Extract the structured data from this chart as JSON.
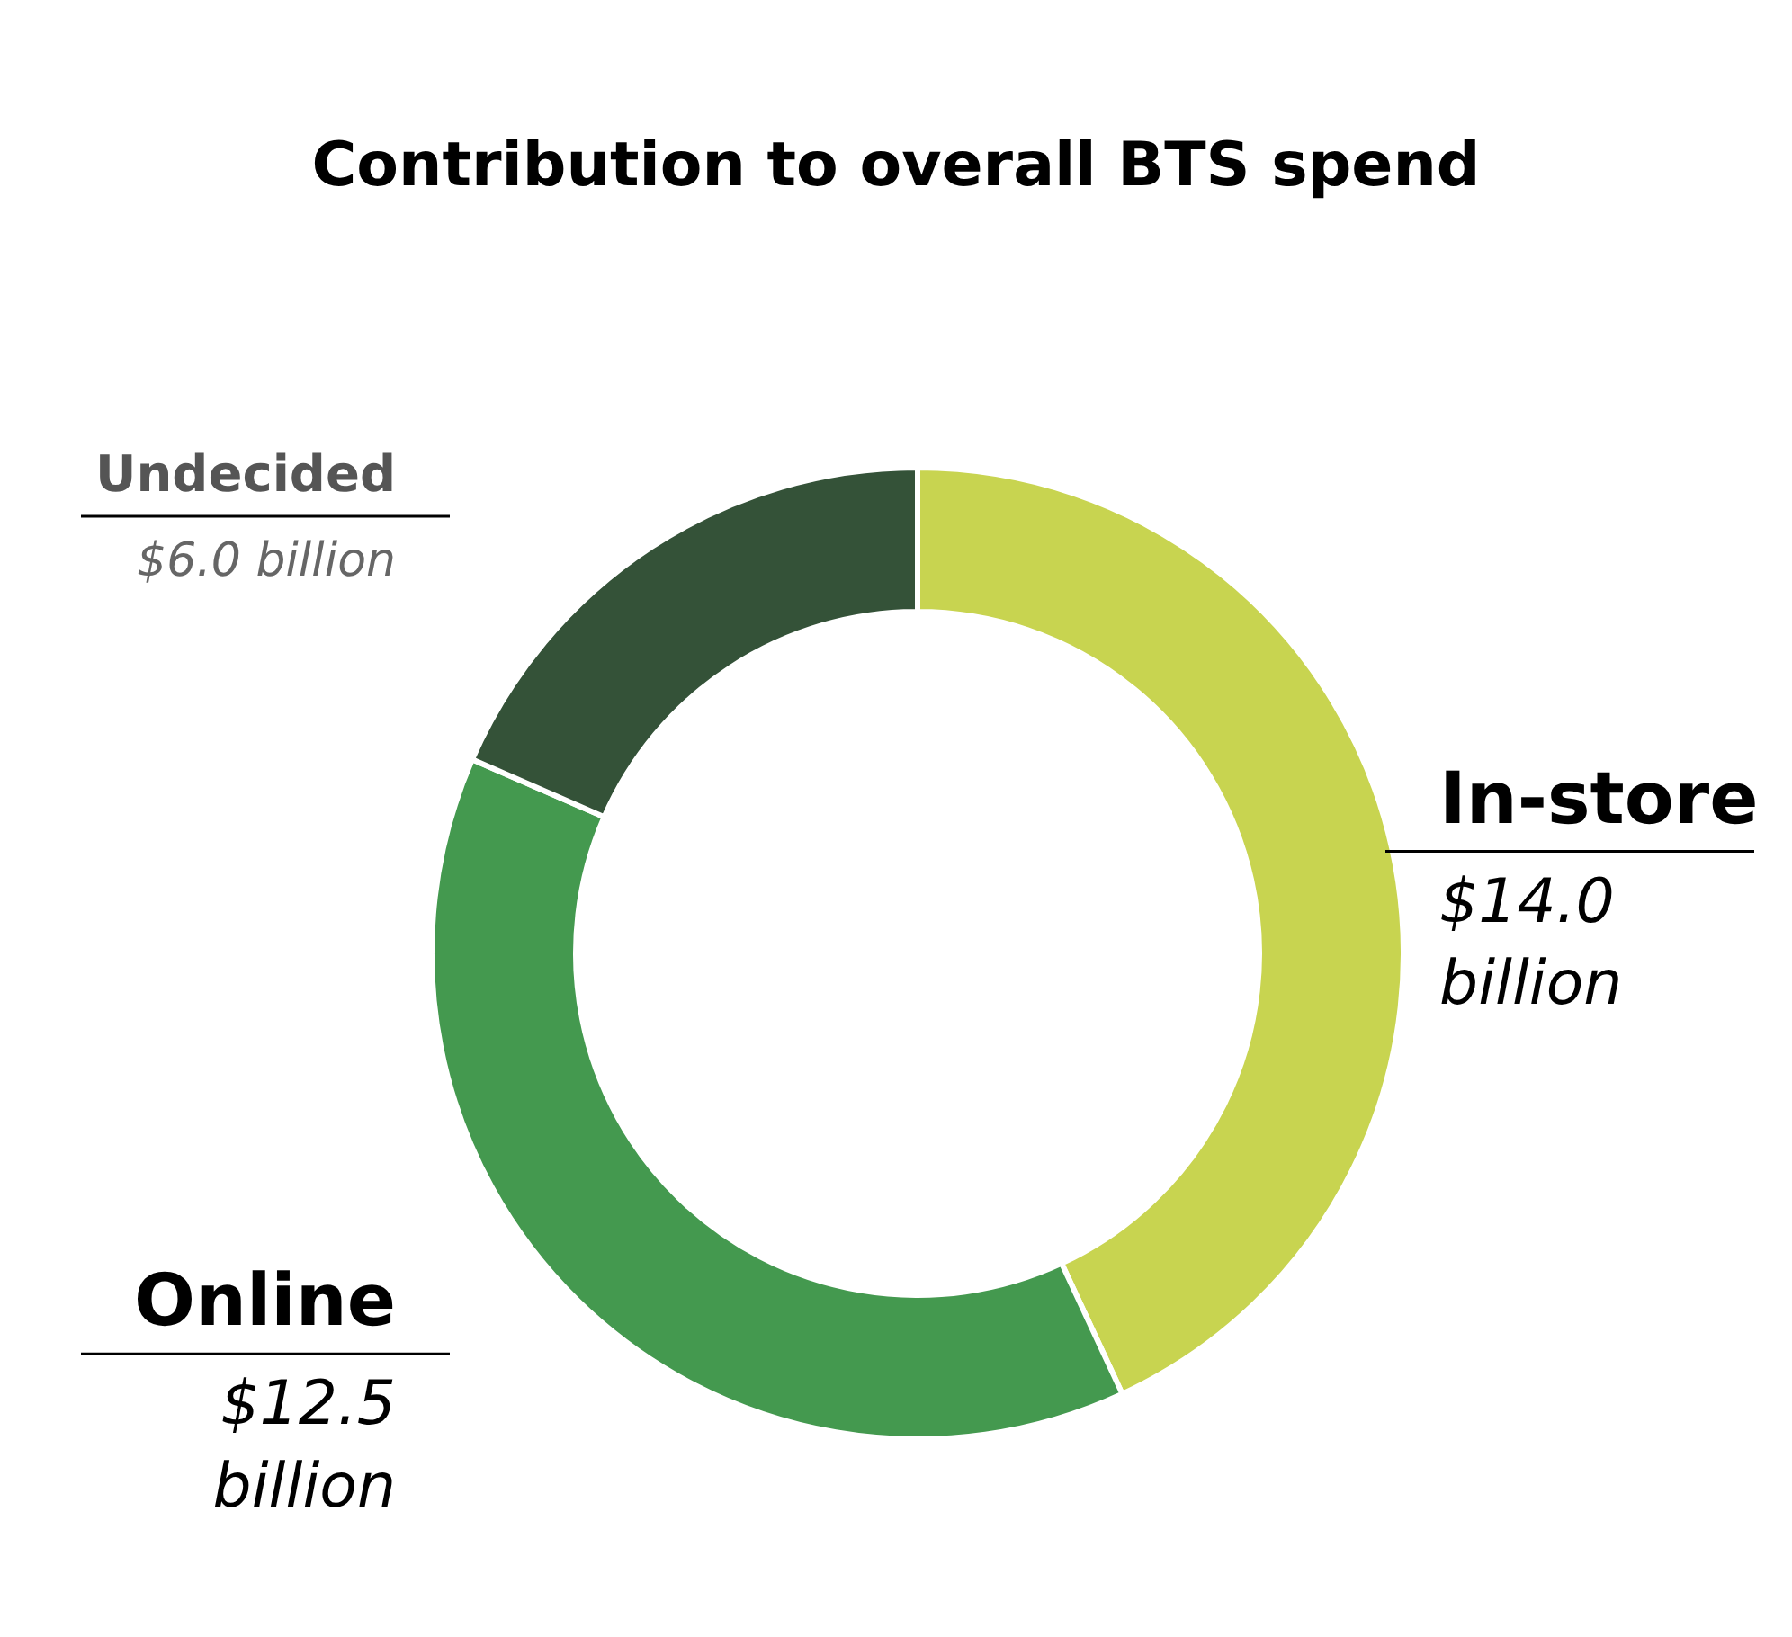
{
  "chart_data": {
    "type": "donut",
    "title": "Contribution to overall BTS spend",
    "categories": [
      "In-store",
      "Online",
      "Undecided"
    ],
    "values": [
      14.0,
      12.5,
      6.0
    ],
    "colors": [
      "#c8d450",
      "#44994f",
      "#345238"
    ],
    "value_labels": [
      "$14.0 billion",
      "$12.5 billion",
      "$6.0 billion"
    ]
  }
}
